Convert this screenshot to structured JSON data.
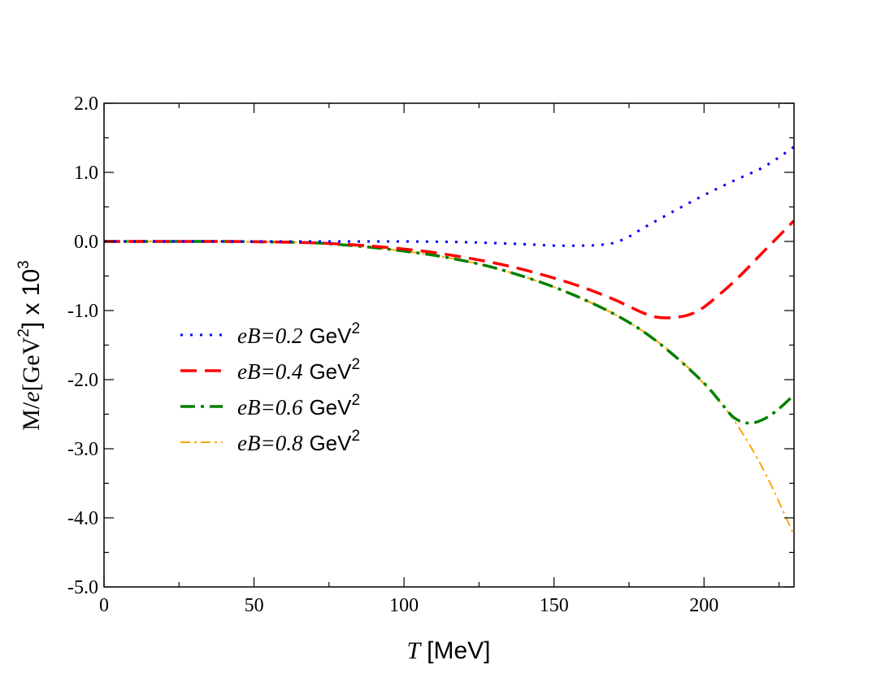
{
  "chart_data": {
    "type": "line",
    "title": "",
    "xlabel": {
      "symbol": "T",
      "unit": "[MeV]"
    },
    "ylabel": {
      "symbol_upright": "M/",
      "symbol_italic": "e",
      "unit_prefix": "[GeV",
      "unit_exp": "2",
      "unit_suffix": "] x 10",
      "scale_exp": "3"
    },
    "xlim": [
      0,
      230
    ],
    "ylim": [
      -5.0,
      2.0
    ],
    "xticks": [
      0,
      50,
      100,
      150,
      200
    ],
    "xtick_labels": [
      "0",
      "50",
      "100",
      "150",
      "200"
    ],
    "yticks": [
      2.0,
      1.0,
      0.0,
      -1.0,
      -2.0,
      -3.0,
      -4.0,
      -5.0
    ],
    "ytick_labels": [
      "2.0",
      "1.0",
      "0.0",
      "-1.0",
      "-2.0",
      "-3.0",
      "-4.0",
      "-5.0"
    ],
    "legend_position": "center-left",
    "series": [
      {
        "name": "eB=0.2 GeV^2",
        "label_italic": "eB=0.2",
        "label_unit": "GeV",
        "label_exp": "2",
        "color": "#0000ff",
        "style": "dotted",
        "x": [
          0,
          20,
          40,
          60,
          80,
          100,
          120,
          140,
          150,
          160,
          165,
          170,
          175,
          180,
          190,
          200,
          210,
          220,
          230
        ],
        "y": [
          0.0,
          0.0,
          0.0,
          0.0,
          0.0,
          0.0,
          -0.01,
          -0.04,
          -0.06,
          -0.06,
          -0.05,
          -0.02,
          0.07,
          0.2,
          0.44,
          0.67,
          0.88,
          1.08,
          1.37
        ]
      },
      {
        "name": "eB=0.4 GeV^2",
        "label_italic": "eB=0.4",
        "label_unit": "GeV",
        "label_exp": "2",
        "color": "#ff0000",
        "style": "dashed",
        "x": [
          0,
          20,
          40,
          60,
          70,
          80,
          90,
          100,
          110,
          120,
          130,
          140,
          150,
          160,
          170,
          180,
          185,
          190,
          195,
          200,
          210,
          220,
          230
        ],
        "y": [
          0.0,
          0.0,
          0.0,
          -0.01,
          -0.02,
          -0.04,
          -0.07,
          -0.11,
          -0.16,
          -0.23,
          -0.31,
          -0.41,
          -0.53,
          -0.67,
          -0.84,
          -1.04,
          -1.1,
          -1.1,
          -1.06,
          -0.95,
          -0.58,
          -0.14,
          0.3
        ]
      },
      {
        "name": "eB=0.6 GeV^2",
        "label_italic": "eB=0.6",
        "label_unit": "GeV",
        "label_exp": "2",
        "color": "#008000",
        "style": "dashdot",
        "x": [
          0,
          20,
          40,
          60,
          70,
          80,
          90,
          100,
          110,
          120,
          130,
          140,
          150,
          160,
          170,
          180,
          190,
          200,
          205,
          210,
          215,
          220,
          225,
          230
        ],
        "y": [
          0.0,
          0.0,
          0.0,
          -0.01,
          -0.02,
          -0.05,
          -0.09,
          -0.14,
          -0.2,
          -0.28,
          -0.38,
          -0.51,
          -0.66,
          -0.84,
          -1.05,
          -1.31,
          -1.65,
          -2.05,
          -2.3,
          -2.55,
          -2.63,
          -2.57,
          -2.42,
          -2.22
        ]
      },
      {
        "name": "eB=0.8 GeV^2",
        "label_italic": "eB=0.8",
        "label_unit": "GeV",
        "label_exp": "2",
        "color": "#ffa500",
        "style": "dashdot-thin",
        "x": [
          0,
          20,
          40,
          60,
          70,
          80,
          90,
          100,
          110,
          120,
          130,
          140,
          150,
          160,
          170,
          180,
          190,
          200,
          210,
          220,
          230
        ],
        "y": [
          0.0,
          0.0,
          0.0,
          -0.01,
          -0.02,
          -0.05,
          -0.09,
          -0.14,
          -0.2,
          -0.28,
          -0.38,
          -0.51,
          -0.66,
          -0.84,
          -1.05,
          -1.31,
          -1.64,
          -2.06,
          -2.59,
          -3.32,
          -4.25
        ]
      }
    ]
  }
}
